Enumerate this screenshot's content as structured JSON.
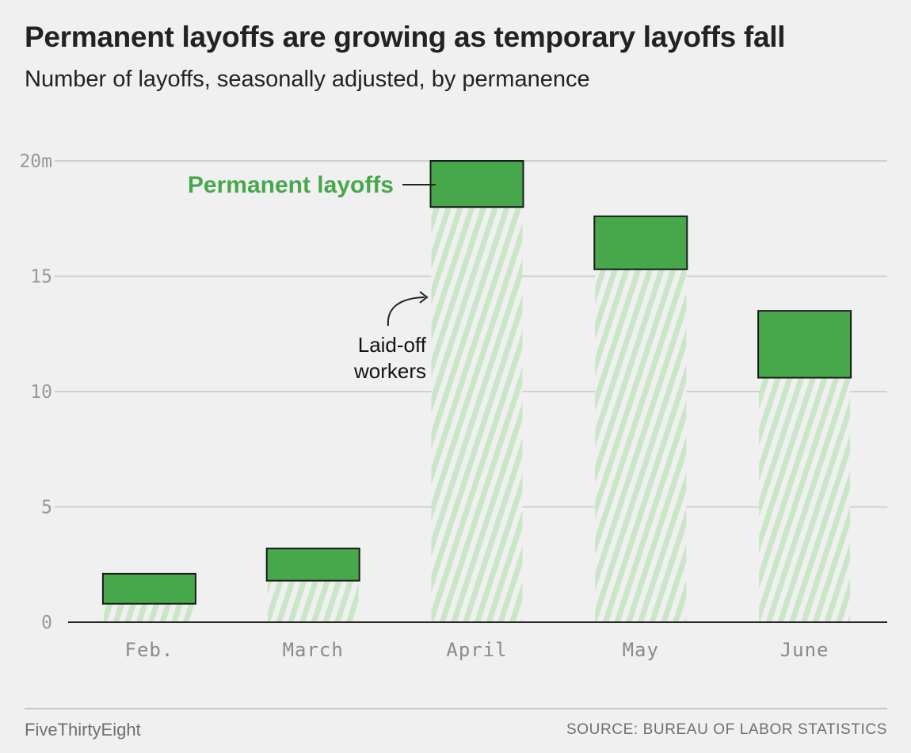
{
  "header": {
    "title": "Permanent layoffs are growing as temporary layoffs fall",
    "subtitle": "Number of layoffs, seasonally adjusted, by permanence"
  },
  "footer": {
    "brand": "FiveThirtyEight",
    "source": "SOURCE: BUREAU OF LABOR STATISTICS"
  },
  "annotations": {
    "permanent_label": "Permanent layoffs",
    "laid_off_line1": "Laid-off",
    "laid_off_line2": "workers"
  },
  "colors": {
    "permanent": "#47a84b",
    "hatch": "#c9e6c6",
    "permanent_label": "#47a84b",
    "gridline": "#d0d0d0",
    "axis": "#222222",
    "background": "#f0f0f0"
  },
  "chart_data": {
    "type": "bar",
    "stacked": true,
    "categories": [
      "Feb.",
      "March",
      "April",
      "May",
      "June"
    ],
    "series": [
      {
        "name": "Laid-off workers",
        "values": [
          0.8,
          1.8,
          18.0,
          15.3,
          10.6
        ],
        "style": "hatched"
      },
      {
        "name": "Permanent layoffs",
        "values": [
          1.3,
          1.4,
          2.0,
          2.3,
          2.9
        ],
        "style": "solid"
      }
    ],
    "y_ticks": [
      0,
      5,
      10,
      15,
      20
    ],
    "y_tick_labels": [
      "0",
      "5",
      "10",
      "15",
      "20m"
    ],
    "ylim": [
      0,
      20
    ],
    "grid": true
  }
}
